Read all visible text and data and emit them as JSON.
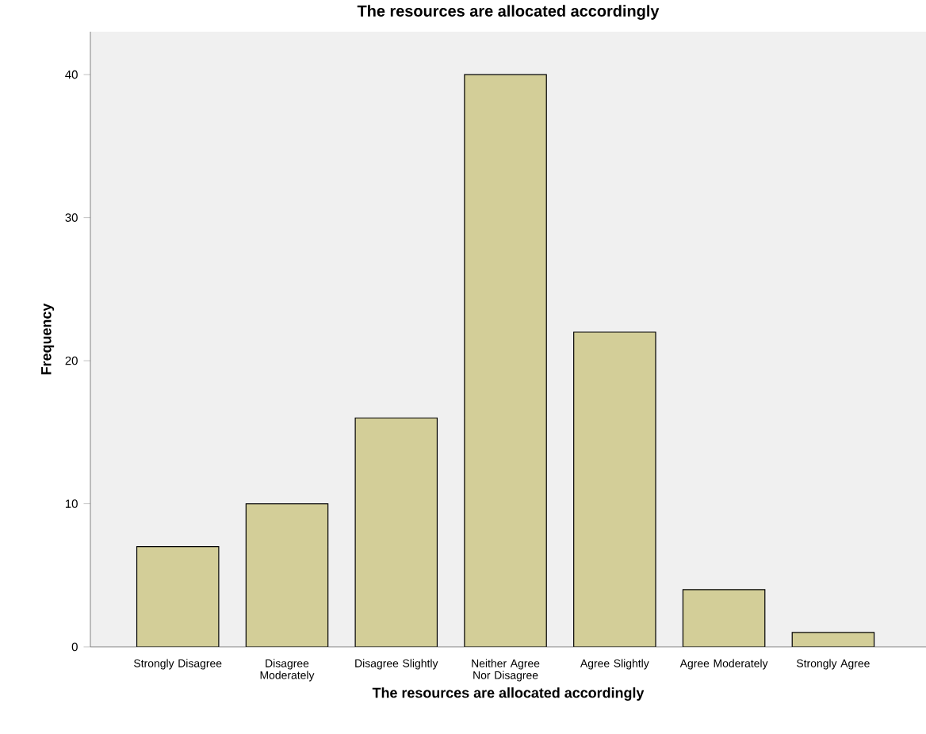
{
  "chart_data": {
    "type": "bar",
    "title": "The resources are allocated accordingly",
    "xlabel": "The resources are allocated accordingly",
    "ylabel": "Frequency",
    "categories": [
      "Strongly Disagree",
      "Disagree Moderately",
      "Disagree Slightly",
      "Neither Agree Nor Disagree",
      "Agree Slightly",
      "Agree Moderately",
      "Strongly Agree"
    ],
    "values": [
      7,
      10,
      16,
      40,
      22,
      4,
      1
    ],
    "color": "#d3ce98",
    "ylim": [
      0,
      43
    ],
    "yticks": [
      0,
      10,
      20,
      30,
      40
    ],
    "grid": false
  }
}
